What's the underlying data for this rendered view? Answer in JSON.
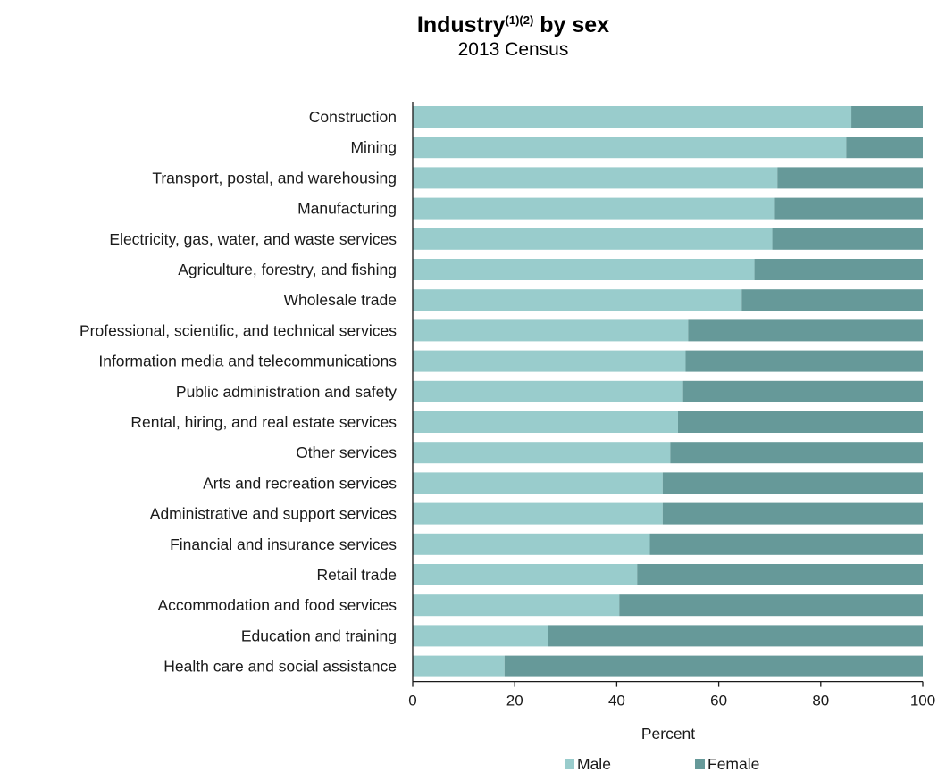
{
  "chart_data": {
    "type": "bar",
    "orientation": "horizontal",
    "stacked": true,
    "title": "Industry",
    "title_superscript": "(1)(2)",
    "title_suffix": " by sex",
    "subtitle": "2013 Census",
    "xlabel": "Percent",
    "ylabel": "",
    "xlim": [
      0,
      100
    ],
    "x_ticks": [
      0,
      20,
      40,
      60,
      80,
      100
    ],
    "grid": false,
    "legend_position": "bottom",
    "categories": [
      "Construction",
      "Mining",
      "Transport, postal, and warehousing",
      "Manufacturing",
      "Electricity, gas, water, and waste services",
      "Agriculture, forestry, and fishing",
      "Wholesale trade",
      "Professional, scientific, and technical services",
      "Information media and telecommunications",
      "Public administration and safety",
      "Rental, hiring, and real estate services",
      "Other services",
      "Arts and recreation services",
      "Administrative and support services",
      "Financial and insurance services",
      "Retail trade",
      "Accommodation and food services",
      "Education and training",
      "Health care and social assistance"
    ],
    "series": [
      {
        "name": "Male",
        "color": "#99cccc",
        "values": [
          86,
          85,
          71.5,
          71,
          70.5,
          67,
          64.5,
          54,
          53.5,
          53,
          52,
          50.5,
          49,
          49,
          46.5,
          44,
          40.5,
          26.5,
          18
        ]
      },
      {
        "name": "Female",
        "color": "#669999",
        "values": [
          14,
          15,
          28.5,
          29,
          29.5,
          33,
          35.5,
          46,
          46.5,
          47,
          48,
          49.5,
          51,
          51,
          53.5,
          56,
          59.5,
          73.5,
          82
        ]
      }
    ]
  }
}
